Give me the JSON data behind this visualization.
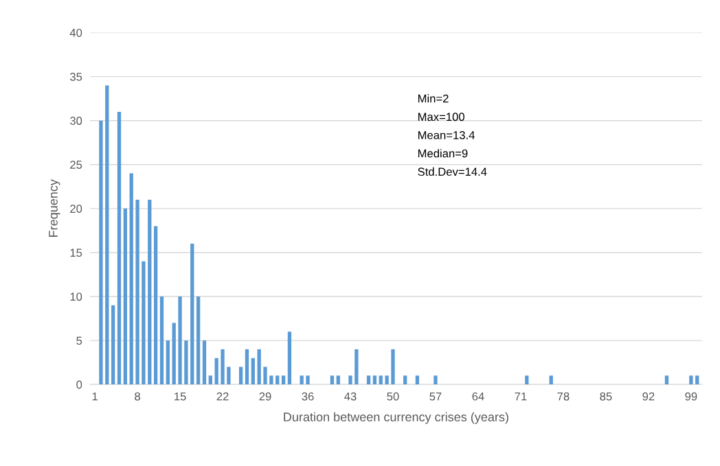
{
  "chart_data": {
    "type": "bar",
    "xlabel": "Duration between currency crises (years)",
    "ylabel": "Frequency",
    "categories": [
      "1",
      null,
      null,
      null,
      null,
      null,
      null,
      "8",
      null,
      null,
      null,
      null,
      null,
      null,
      "15",
      null,
      null,
      null,
      null,
      null,
      null,
      "22",
      null,
      null,
      null,
      null,
      null,
      null,
      "29",
      null,
      null,
      null,
      null,
      null,
      null,
      "36",
      null,
      null,
      null,
      null,
      null,
      null,
      "43",
      null,
      null,
      null,
      null,
      null,
      null,
      "50",
      null,
      null,
      null,
      null,
      null,
      null,
      "57",
      null,
      null,
      null,
      null,
      null,
      null,
      "64",
      null,
      null,
      null,
      null,
      null,
      null,
      "71",
      null,
      null,
      null,
      null,
      null,
      null,
      "78",
      null,
      null,
      null,
      null,
      null,
      null,
      "85",
      null,
      null,
      null,
      null,
      null,
      null,
      "92",
      null,
      null,
      null,
      null,
      null,
      null,
      "99",
      null
    ],
    "values": [
      0,
      30,
      34,
      9,
      31,
      20,
      24,
      21,
      14,
      21,
      18,
      10,
      5,
      7,
      10,
      5,
      16,
      10,
      5,
      1,
      3,
      4,
      2,
      0,
      2,
      4,
      3,
      4,
      2,
      1,
      1,
      1,
      6,
      0,
      1,
      1,
      0,
      0,
      0,
      1,
      1,
      0,
      1,
      4,
      0,
      1,
      1,
      1,
      1,
      4,
      0,
      1,
      0,
      1,
      0,
      0,
      1,
      0,
      0,
      0,
      0,
      0,
      0,
      0,
      0,
      0,
      0,
      0,
      0,
      0,
      0,
      1,
      0,
      0,
      0,
      1,
      0,
      0,
      0,
      0,
      0,
      0,
      0,
      0,
      0,
      0,
      0,
      0,
      0,
      0,
      0,
      0,
      0,
      0,
      1,
      0,
      0,
      0,
      1,
      1
    ],
    "color": "#5b9bd5",
    "ylim": [
      0,
      40
    ],
    "yticks": [
      0,
      5,
      10,
      15,
      20,
      25,
      30,
      35,
      40
    ],
    "grid": "y",
    "annotations": [
      "Min=2",
      "Max=100",
      "Mean=13.4",
      "Median=9",
      "Std.Dev=14.4"
    ]
  }
}
